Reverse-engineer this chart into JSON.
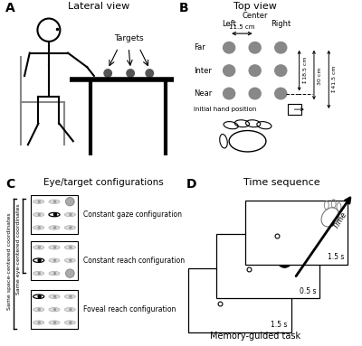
{
  "panel_labels": [
    "A",
    "B",
    "C",
    "D"
  ],
  "panel_A_title": "Lateral view",
  "panel_B_title": "Top view",
  "panel_C_title": "Eye/target configurations",
  "panel_D_title": "Time sequence",
  "bg_color": "#ffffff",
  "gray_dot_color": "#888888",
  "black": "#000000",
  "panel_C_labels": [
    "Constant gaze configuration",
    "Constant reach configuration",
    "Foveal reach configuration"
  ],
  "panel_D_times": [
    "1.5 s",
    "0.5 s",
    "1.5 s"
  ],
  "panel_D_bottom_label": "Memory-guided task",
  "panel_B_row_labels": [
    "Far",
    "Inter",
    "Near"
  ],
  "panel_B_col_labels": [
    "Left",
    "Right"
  ],
  "panel_B_center_label": "Center",
  "panel_B_hand_label": "Initial hand position",
  "panel_C_y_label1": "Same space-centered coordinates",
  "panel_C_y_label2": "Same eye-centered coordinates"
}
